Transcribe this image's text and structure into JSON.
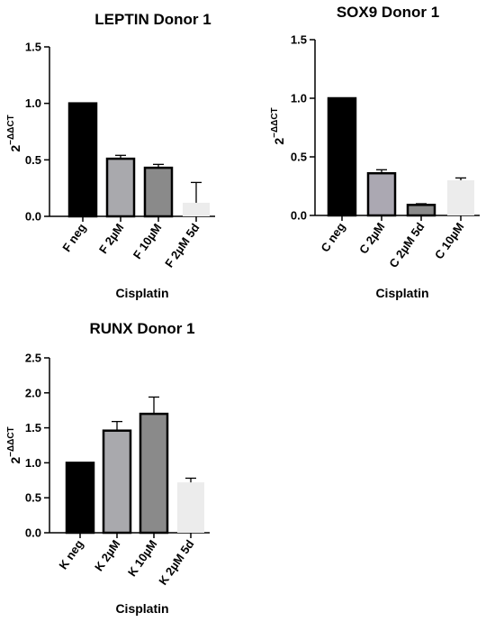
{
  "chart_data": [
    {
      "type": "bar",
      "title": "LEPTIN Donor 1",
      "xlabel": "Cisplatin",
      "ylabel": {
        "base": "2",
        "superscript": "−ΔΔCT"
      },
      "ylim": [
        0,
        1.5
      ],
      "yticks": [
        "0.0",
        "0.5",
        "1.0",
        "1.5"
      ],
      "categories": [
        "F neg",
        "F 2µM",
        "F 10µM",
        "F 2µM 5d"
      ],
      "values": [
        1.0,
        0.51,
        0.43,
        0.12
      ],
      "errors": [
        0,
        0.03,
        0.03,
        0.18
      ],
      "colors": [
        "#000000",
        "#a9a9ad",
        "#8a8a8a",
        "#ececec"
      ],
      "grid": false
    },
    {
      "type": "bar",
      "title": "SOX9 Donor 1",
      "xlabel": "Cisplatin",
      "ylabel": {
        "base": "2",
        "superscript": "−ΔΔCT"
      },
      "ylim": [
        0,
        1.5
      ],
      "yticks": [
        "0.0",
        "0.5",
        "1.0",
        "1.5"
      ],
      "categories": [
        "C neg",
        "C 2µM",
        "C 2µM 5d",
        "C 10µM"
      ],
      "values": [
        1.0,
        0.36,
        0.09,
        0.3
      ],
      "errors": [
        0,
        0.03,
        0.01,
        0.02
      ],
      "colors": [
        "#000000",
        "#aba8b2",
        "#8a8a8a",
        "#ececec"
      ],
      "grid": false
    },
    {
      "type": "bar",
      "title": "RUNX Donor 1",
      "xlabel": "Cisplatin",
      "ylabel": {
        "base": "2",
        "superscript": "−ΔΔCT"
      },
      "ylim": [
        0,
        2.5
      ],
      "yticks": [
        "0.0",
        "0.5",
        "1.0",
        "1.5",
        "2.0",
        "2.5"
      ],
      "categories": [
        "K neg",
        "K 2µM",
        "K 10µM",
        "K 2µM 5d"
      ],
      "values": [
        1.0,
        1.46,
        1.7,
        0.72
      ],
      "errors": [
        0,
        0.13,
        0.24,
        0.06
      ],
      "colors": [
        "#000000",
        "#a9a9ad",
        "#8a8a8a",
        "#ececec"
      ],
      "grid": false
    }
  ]
}
